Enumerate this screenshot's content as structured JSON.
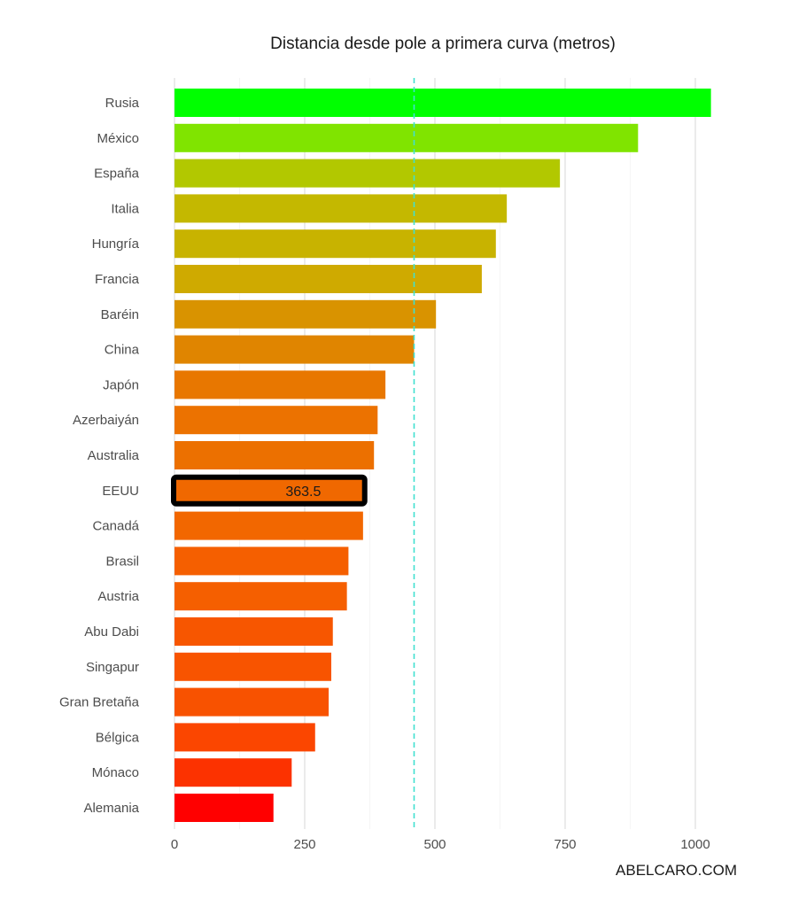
{
  "chart_data": {
    "type": "bar",
    "orientation": "horizontal",
    "title": "Distancia desde pole a primera curva (metros)",
    "xlabel": "",
    "ylabel": "",
    "xlim": [
      0,
      1050
    ],
    "x_ticks": [
      0,
      250,
      500,
      750,
      1000
    ],
    "grid": "vertical major gridlines",
    "categories": [
      "Rusia",
      "México",
      "España",
      "Italia",
      "Hungría",
      "Francia",
      "Baréin",
      "China",
      "Japón",
      "Azerbaiyán",
      "Australia",
      "EEUU",
      "Canadá",
      "Brasil",
      "Austria",
      "Abu Dabi",
      "Singapur",
      "Gran Bretaña",
      "Bélgica",
      "Mónaco",
      "Alemania"
    ],
    "values": [
      1030,
      890,
      740,
      638,
      617,
      590,
      502,
      460,
      405,
      390,
      383,
      363.5,
      362,
      334,
      331,
      304,
      301,
      296,
      270,
      225,
      190
    ],
    "colors": [
      "#00ff00",
      "#80e400",
      "#b2c800",
      "#c4b800",
      "#c8b300",
      "#cfaa00",
      "#d99300",
      "#e08500",
      "#e87700",
      "#ec7200",
      "#ec7000",
      "#f06800",
      "#f26700",
      "#f55f00",
      "#f55f00",
      "#f75600",
      "#f85400",
      "#f85200",
      "#fb4600",
      "#fc3200",
      "#ff0000"
    ],
    "reference_line": {
      "value": 460,
      "style": "dashed",
      "color": "#40e0d0"
    },
    "highlight": {
      "category": "EEUU",
      "label": "363.5",
      "box_color": "#000000"
    }
  },
  "credit": "ABELCARO.COM"
}
